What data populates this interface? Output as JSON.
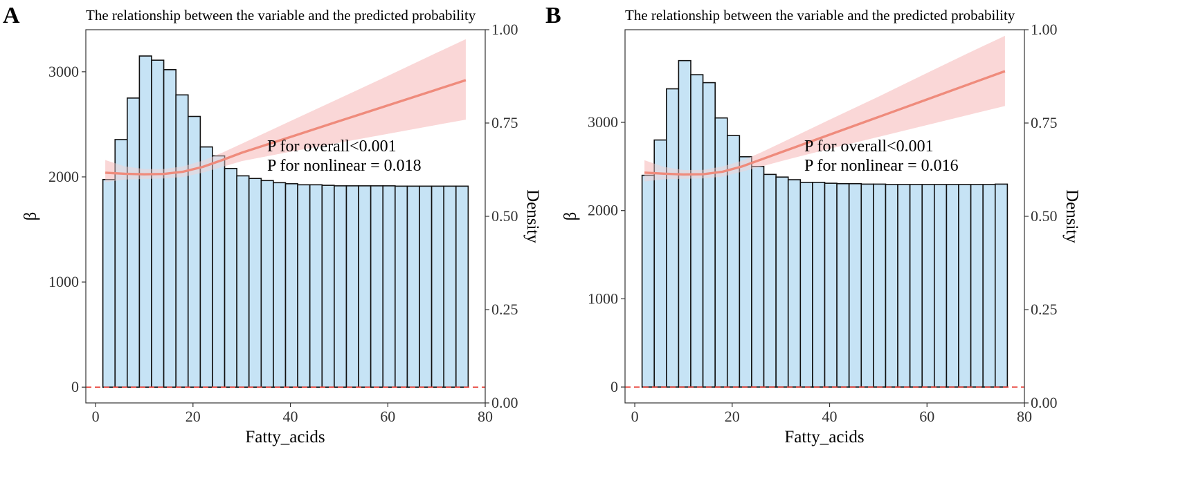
{
  "chart_data": [
    {
      "type": "bar",
      "panel_label": "A",
      "title": "The relationship between the variable and the predicted probability",
      "xlabel": "Fatty_acids",
      "ylabel": "β",
      "y2label": "Density",
      "xlim": [
        -2,
        80
      ],
      "xticks": [
        "0",
        "20",
        "40",
        "60",
        "80"
      ],
      "ylim": [
        -150,
        3400
      ],
      "yticks": [
        "0",
        "1000",
        "2000",
        "3000"
      ],
      "y2ticks": [
        "0.00",
        "0.25",
        "0.50",
        "0.75",
        "1.00"
      ],
      "bins": {
        "start": 1.5,
        "width": 2.5,
        "heights": [
          1975,
          2355,
          2750,
          3150,
          3110,
          3020,
          2780,
          2575,
          2285,
          2200,
          2080,
          2010,
          1985,
          1965,
          1945,
          1935,
          1925,
          1925,
          1920,
          1915,
          1915,
          1915,
          1915,
          1915,
          1912,
          1912,
          1912,
          1912,
          1912,
          1912
        ]
      },
      "fit": {
        "x": [
          2,
          6,
          10,
          14,
          18,
          22,
          26,
          30,
          40,
          50,
          60,
          70,
          76
        ],
        "y": [
          2040,
          2030,
          2025,
          2028,
          2050,
          2095,
          2160,
          2230,
          2380,
          2530,
          2680,
          2830,
          2920
        ],
        "lower": [
          1950,
          1975,
          1980,
          1985,
          2000,
          2040,
          2095,
          2150,
          2240,
          2325,
          2410,
          2495,
          2545
        ],
        "upper": [
          2160,
          2100,
          2075,
          2075,
          2100,
          2155,
          2230,
          2315,
          2530,
          2745,
          2960,
          3180,
          3310
        ]
      },
      "reference_line": 0,
      "annotations": [
        "P for overall<0.001",
        "P for nonlinear = 0.018"
      ],
      "colors": {
        "bar_fill": "#c6e3f5",
        "bar_stroke": "#111111",
        "fit_line": "#ef8b7c",
        "ci_band": "#f9d0d0",
        "ref_line": "#e8433b"
      }
    },
    {
      "type": "bar",
      "panel_label": "B",
      "title": "The relationship between the variable and the predicted probability",
      "xlabel": "Fatty_acids",
      "ylabel": "β",
      "y2label": "Density",
      "xlim": [
        -2,
        80
      ],
      "xticks": [
        "0",
        "20",
        "40",
        "60",
        "80"
      ],
      "ylim": [
        -180,
        4050
      ],
      "yticks": [
        "0",
        "1000",
        "2000",
        "3000"
      ],
      "y2ticks": [
        "0.00",
        "0.25",
        "0.50",
        "0.75",
        "1.00"
      ],
      "bins": {
        "start": 1.5,
        "width": 2.5,
        "heights": [
          2400,
          2800,
          3380,
          3700,
          3540,
          3450,
          3050,
          2850,
          2610,
          2500,
          2410,
          2380,
          2350,
          2320,
          2320,
          2310,
          2305,
          2305,
          2300,
          2300,
          2295,
          2295,
          2295,
          2295,
          2295,
          2295,
          2295,
          2295,
          2295,
          2300
        ]
      },
      "fit": {
        "x": [
          2,
          6,
          10,
          14,
          18,
          22,
          26,
          30,
          40,
          50,
          60,
          70,
          76
        ],
        "y": [
          2430,
          2418,
          2410,
          2412,
          2440,
          2500,
          2580,
          2660,
          2860,
          3060,
          3260,
          3460,
          3580
        ],
        "lower": [
          2330,
          2355,
          2360,
          2365,
          2385,
          2440,
          2500,
          2560,
          2700,
          2835,
          2970,
          3105,
          3185
        ],
        "upper": [
          2570,
          2495,
          2460,
          2462,
          2500,
          2565,
          2660,
          2765,
          3030,
          3290,
          3560,
          3825,
          3980
        ]
      },
      "reference_line": 0,
      "annotations": [
        "P for overall<0.001",
        "P for nonlinear = 0.016"
      ],
      "colors": {
        "bar_fill": "#c6e3f5",
        "bar_stroke": "#111111",
        "fit_line": "#ef8b7c",
        "ci_band": "#f9d0d0",
        "ref_line": "#e8433b"
      }
    }
  ]
}
